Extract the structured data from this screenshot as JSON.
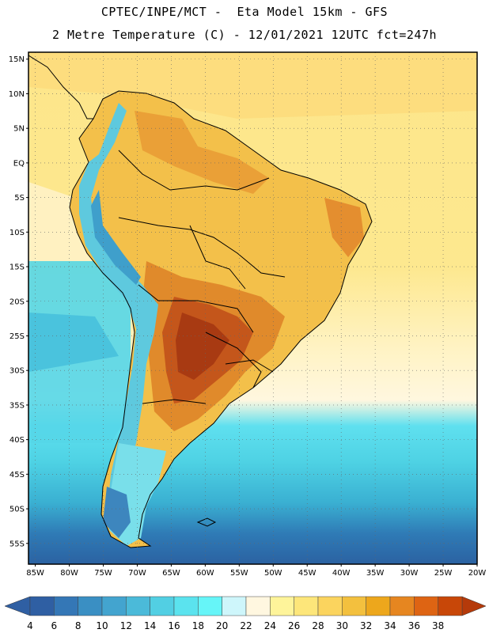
{
  "header": {
    "line1": "CPTEC/INPE/MCT -  Eta Model 15km - GFS",
    "line2": "2 Metre Temperature (C) - 12/01/2021 12UTC fct=247h"
  },
  "map": {
    "lat_range": [
      -58,
      16
    ],
    "lon_range": [
      -86,
      -20
    ],
    "lat_ticks": [
      {
        "value": 15,
        "label": "15N"
      },
      {
        "value": 10,
        "label": "10N"
      },
      {
        "value": 5,
        "label": "5N"
      },
      {
        "value": 0,
        "label": "EQ"
      },
      {
        "value": -5,
        "label": "5S"
      },
      {
        "value": -10,
        "label": "10S"
      },
      {
        "value": -15,
        "label": "15S"
      },
      {
        "value": -20,
        "label": "20S"
      },
      {
        "value": -25,
        "label": "25S"
      },
      {
        "value": -30,
        "label": "30S"
      },
      {
        "value": -35,
        "label": "35S"
      },
      {
        "value": -40,
        "label": "40S"
      },
      {
        "value": -45,
        "label": "45S"
      },
      {
        "value": -50,
        "label": "50S"
      },
      {
        "value": -55,
        "label": "55S"
      }
    ],
    "lon_ticks": [
      {
        "value": -85,
        "label": "85W"
      },
      {
        "value": -80,
        "label": "80W"
      },
      {
        "value": -75,
        "label": "75W"
      },
      {
        "value": -70,
        "label": "70W"
      },
      {
        "value": -65,
        "label": "65W"
      },
      {
        "value": -60,
        "label": "60W"
      },
      {
        "value": -55,
        "label": "55W"
      },
      {
        "value": -50,
        "label": "50W"
      },
      {
        "value": -45,
        "label": "45W"
      },
      {
        "value": -40,
        "label": "40W"
      },
      {
        "value": -35,
        "label": "35W"
      },
      {
        "value": -30,
        "label": "30W"
      },
      {
        "value": -25,
        "label": "25W"
      },
      {
        "value": -20,
        "label": "20W"
      }
    ],
    "colors": {
      "ocean_tropical": "#fde68a",
      "ocean_mid": "#fff3c4",
      "land_warm": "#f5c451",
      "land_hot": "#e8862a",
      "land_very_hot": "#c9561b",
      "land_extreme": "#a83a12",
      "andes_cool": "#59c7dd",
      "ocean_cool": "#52d8e8",
      "ocean_cold": "#3aa5cc",
      "ocean_coldest": "#2b69a8",
      "border": "#000000",
      "grid": "#555555"
    }
  },
  "colorbar": {
    "labels": [
      "4",
      "6",
      "8",
      "10",
      "12",
      "14",
      "16",
      "18",
      "20",
      "22",
      "24",
      "26",
      "28",
      "30",
      "32",
      "34",
      "36",
      "38"
    ],
    "colors": [
      "#2f5fa3",
      "#3477b6",
      "#3a8fc3",
      "#43a4cf",
      "#4bbad9",
      "#52cfe3",
      "#5be3ee",
      "#66f5f8",
      "#cef6fb",
      "#fff7e0",
      "#fef49a",
      "#fde67a",
      "#fbd45e",
      "#f3c03e",
      "#eda71c",
      "#e68620",
      "#de6413",
      "#c84708"
    ],
    "left_arrow_color": "#2f5fa3",
    "right_arrow_color": "#b53a0a"
  }
}
